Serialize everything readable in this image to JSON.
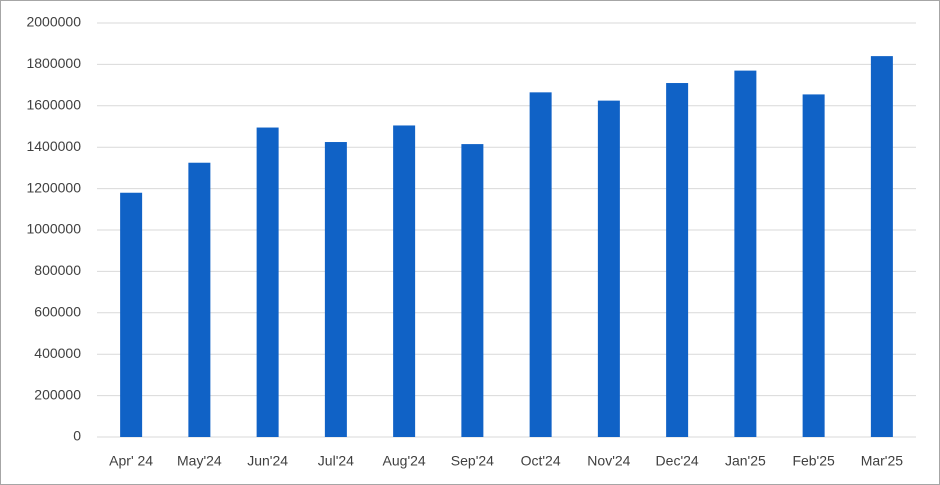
{
  "chart_data": {
    "type": "bar",
    "categories": [
      "Apr' 24",
      "May'24",
      "Jun'24",
      "Jul'24",
      "Aug'24",
      "Sep'24",
      "Oct'24",
      "Nov'24",
      "Dec'24",
      "Jan'25",
      "Feb'25",
      "Mar'25"
    ],
    "values": [
      1180000,
      1325000,
      1495000,
      1425000,
      1505000,
      1415000,
      1665000,
      1625000,
      1710000,
      1770000,
      1655000,
      1840000
    ],
    "color": "#1062c6",
    "ylim": [
      0,
      2000000
    ],
    "yticks": [
      0,
      200000,
      400000,
      600000,
      800000,
      1000000,
      1200000,
      1400000,
      1600000,
      1800000,
      2000000
    ],
    "grid": true
  }
}
